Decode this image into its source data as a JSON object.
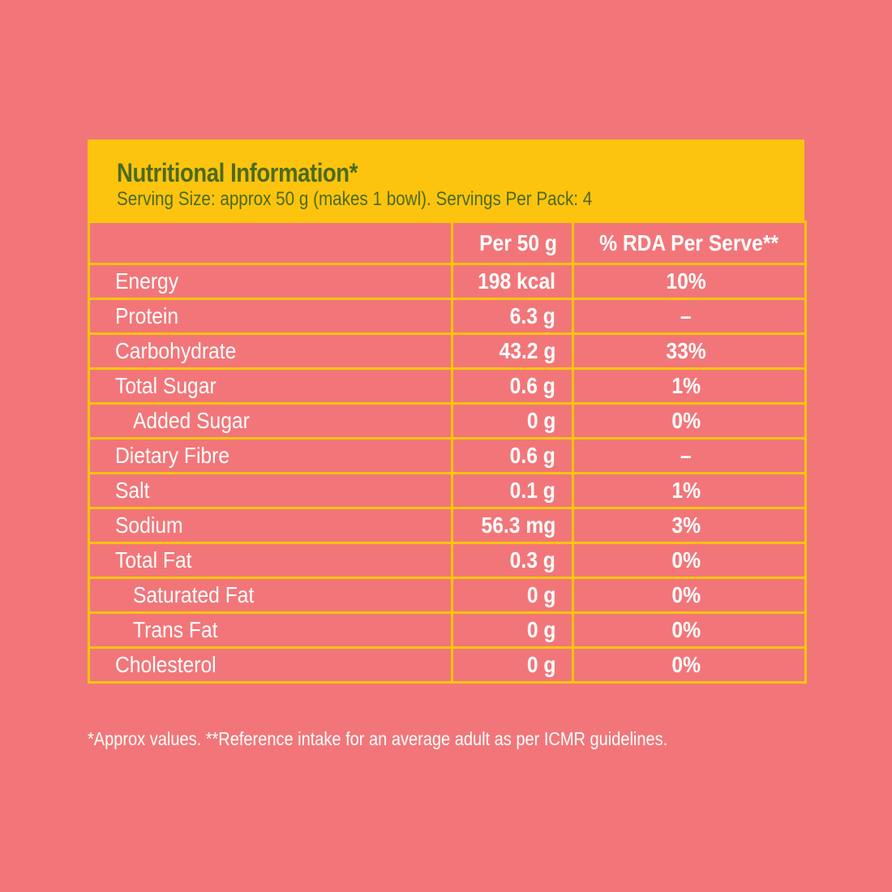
{
  "panel": {
    "title": "Nutritional Information*",
    "subtitle": "Serving Size: approx 50 g (makes 1 bowl). Servings Per Pack: 4"
  },
  "table": {
    "headers": {
      "nutrient": "",
      "per": "Per 50 g",
      "rda": "% RDA Per Serve**"
    },
    "rows": [
      {
        "name": "Energy",
        "per": "198 kcal",
        "rda": "10%",
        "indent": false
      },
      {
        "name": "Protein",
        "per": "6.3 g",
        "rda": "–",
        "indent": false
      },
      {
        "name": "Carbohydrate",
        "per": "43.2 g",
        "rda": "33%",
        "indent": false
      },
      {
        "name": "Total Sugar",
        "per": "0.6 g",
        "rda": "1%",
        "indent": false
      },
      {
        "name": "Added Sugar",
        "per": "0 g",
        "rda": "0%",
        "indent": true
      },
      {
        "name": "Dietary Fibre",
        "per": "0.6 g",
        "rda": "–",
        "indent": false
      },
      {
        "name": "Salt",
        "per": "0.1 g",
        "rda": "1%",
        "indent": false
      },
      {
        "name": "Sodium",
        "per": "56.3 mg",
        "rda": "3%",
        "indent": false
      },
      {
        "name": "Total Fat",
        "per": "0.3 g",
        "rda": "0%",
        "indent": false
      },
      {
        "name": "Saturated Fat",
        "per": "0 g",
        "rda": "0%",
        "indent": true
      },
      {
        "name": "Trans Fat",
        "per": "0 g",
        "rda": "0%",
        "indent": true
      },
      {
        "name": "Cholesterol",
        "per": "0 g",
        "rda": "0%",
        "indent": false
      }
    ]
  },
  "footnote": "*Approx values. **Reference intake for an average adult as per ICMR guidelines.",
  "colors": {
    "background": "#f27679",
    "header": "#fcc40e",
    "title_text": "#4e6a1c",
    "grid": "#fcc40e",
    "body_text": "#ffffff"
  }
}
